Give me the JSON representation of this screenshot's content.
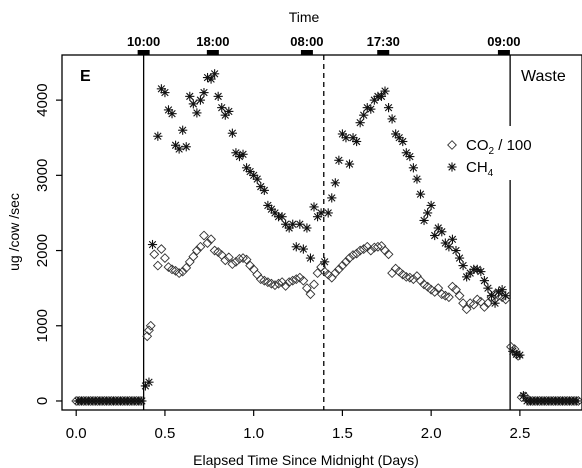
{
  "chart_data": {
    "type": "scatter",
    "title": "",
    "top_axis_title": "Time",
    "top_time_labels": [
      {
        "x": 0.38,
        "label": "10:00"
      },
      {
        "x": 0.77,
        "label": "18:00"
      },
      {
        "x": 1.3,
        "label": "08:00"
      },
      {
        "x": 1.73,
        "label": "17:30"
      },
      {
        "x": 2.41,
        "label": "09:00"
      }
    ],
    "xlabel": "Elapsed Time Since Midnight (Days)",
    "ylabel": "ug /cow /sec",
    "xlim": [
      -0.08,
      2.85
    ],
    "ylim": [
      -120,
      4600
    ],
    "xticks": [
      0.0,
      0.5,
      1.0,
      1.5,
      2.0,
      2.5
    ],
    "xtick_labels": [
      "0.0",
      "0.5",
      "1.0",
      "1.5",
      "2.0",
      "2.5"
    ],
    "yticks": [
      0,
      1000,
      2000,
      3000,
      4000
    ],
    "ytick_labels": [
      "0",
      "1000",
      "2000",
      "3000",
      "4000"
    ],
    "grid": false,
    "legend_position": "right",
    "panel_label": "E",
    "annotation": "Waste",
    "vertical_lines": [
      {
        "x": 0.38,
        "style": "solid"
      },
      {
        "x": 1.395,
        "style": "dashed"
      },
      {
        "x": 2.445,
        "style": "solid"
      }
    ],
    "series": [
      {
        "name": "CO2 / 100",
        "legend_main": "CO",
        "legend_sub": "2",
        "legend_suffix": " / 100",
        "marker": "diamond",
        "points": [
          [
            0.0,
            0
          ],
          [
            0.02,
            0
          ],
          [
            0.04,
            0
          ],
          [
            0.06,
            0
          ],
          [
            0.08,
            0
          ],
          [
            0.1,
            0
          ],
          [
            0.12,
            0
          ],
          [
            0.14,
            0
          ],
          [
            0.16,
            0
          ],
          [
            0.18,
            0
          ],
          [
            0.2,
            0
          ],
          [
            0.22,
            0
          ],
          [
            0.24,
            0
          ],
          [
            0.26,
            0
          ],
          [
            0.28,
            0
          ],
          [
            0.3,
            0
          ],
          [
            0.32,
            0
          ],
          [
            0.34,
            0
          ],
          [
            0.36,
            0
          ],
          [
            0.4,
            860
          ],
          [
            0.41,
            940
          ],
          [
            0.42,
            1000
          ],
          [
            0.44,
            1950
          ],
          [
            0.46,
            1800
          ],
          [
            0.48,
            2020
          ],
          [
            0.5,
            1900
          ],
          [
            0.52,
            1780
          ],
          [
            0.54,
            1750
          ],
          [
            0.56,
            1730
          ],
          [
            0.58,
            1700
          ],
          [
            0.6,
            1720
          ],
          [
            0.62,
            1770
          ],
          [
            0.64,
            1850
          ],
          [
            0.66,
            1920
          ],
          [
            0.68,
            2000
          ],
          [
            0.7,
            2050
          ],
          [
            0.72,
            2200
          ],
          [
            0.74,
            2100
          ],
          [
            0.76,
            2150
          ],
          [
            0.78,
            2000
          ],
          [
            0.8,
            1980
          ],
          [
            0.82,
            1940
          ],
          [
            0.84,
            1870
          ],
          [
            0.86,
            1910
          ],
          [
            0.88,
            1820
          ],
          [
            0.9,
            1850
          ],
          [
            0.92,
            1890
          ],
          [
            0.94,
            1900
          ],
          [
            0.96,
            1880
          ],
          [
            0.98,
            1800
          ],
          [
            1.0,
            1750
          ],
          [
            1.02,
            1680
          ],
          [
            1.04,
            1620
          ],
          [
            1.06,
            1600
          ],
          [
            1.08,
            1580
          ],
          [
            1.1,
            1560
          ],
          [
            1.12,
            1540
          ],
          [
            1.14,
            1560
          ],
          [
            1.16,
            1580
          ],
          [
            1.18,
            1530
          ],
          [
            1.2,
            1580
          ],
          [
            1.22,
            1600
          ],
          [
            1.24,
            1620
          ],
          [
            1.26,
            1640
          ],
          [
            1.28,
            1600
          ],
          [
            1.3,
            1500
          ],
          [
            1.32,
            1420
          ],
          [
            1.34,
            1550
          ],
          [
            1.36,
            1700
          ],
          [
            1.38,
            1780
          ],
          [
            1.4,
            1720
          ],
          [
            1.42,
            1680
          ],
          [
            1.44,
            1640
          ],
          [
            1.46,
            1700
          ],
          [
            1.48,
            1750
          ],
          [
            1.5,
            1800
          ],
          [
            1.52,
            1850
          ],
          [
            1.54,
            1900
          ],
          [
            1.56,
            1940
          ],
          [
            1.58,
            1960
          ],
          [
            1.6,
            2000
          ],
          [
            1.62,
            2020
          ],
          [
            1.64,
            2050
          ],
          [
            1.66,
            2000
          ],
          [
            1.68,
            2040
          ],
          [
            1.7,
            2050
          ],
          [
            1.72,
            2060
          ],
          [
            1.74,
            2000
          ],
          [
            1.76,
            1950
          ],
          [
            1.78,
            1700
          ],
          [
            1.8,
            1760
          ],
          [
            1.82,
            1720
          ],
          [
            1.84,
            1680
          ],
          [
            1.86,
            1650
          ],
          [
            1.88,
            1640
          ],
          [
            1.9,
            1620
          ],
          [
            1.92,
            1660
          ],
          [
            1.94,
            1600
          ],
          [
            1.96,
            1550
          ],
          [
            1.98,
            1520
          ],
          [
            2.0,
            1480
          ],
          [
            2.02,
            1450
          ],
          [
            2.04,
            1500
          ],
          [
            2.06,
            1420
          ],
          [
            2.08,
            1400
          ],
          [
            2.1,
            1380
          ],
          [
            2.12,
            1520
          ],
          [
            2.14,
            1480
          ],
          [
            2.16,
            1400
          ],
          [
            2.18,
            1300
          ],
          [
            2.2,
            1220
          ],
          [
            2.22,
            1300
          ],
          [
            2.24,
            1280
          ],
          [
            2.26,
            1350
          ],
          [
            2.28,
            1320
          ],
          [
            2.3,
            1250
          ],
          [
            2.32,
            1300
          ],
          [
            2.34,
            1380
          ],
          [
            2.36,
            1420
          ],
          [
            2.38,
            1400
          ],
          [
            2.4,
            1380
          ],
          [
            2.42,
            1350
          ],
          [
            2.45,
            720
          ],
          [
            2.47,
            690
          ],
          [
            2.49,
            600
          ],
          [
            2.51,
            50
          ],
          [
            2.53,
            60
          ],
          [
            2.55,
            0
          ],
          [
            2.57,
            0
          ],
          [
            2.59,
            0
          ],
          [
            2.61,
            0
          ],
          [
            2.63,
            0
          ],
          [
            2.65,
            0
          ],
          [
            2.67,
            0
          ],
          [
            2.69,
            0
          ],
          [
            2.71,
            0
          ],
          [
            2.73,
            0
          ],
          [
            2.75,
            0
          ],
          [
            2.77,
            0
          ],
          [
            2.79,
            0
          ],
          [
            2.81,
            0
          ],
          [
            2.83,
            0
          ]
        ]
      },
      {
        "name": "CH4",
        "legend_main": "CH",
        "legend_sub": "4",
        "legend_suffix": "",
        "marker": "asterisk",
        "points": [
          [
            0.01,
            0
          ],
          [
            0.03,
            0
          ],
          [
            0.05,
            0
          ],
          [
            0.07,
            0
          ],
          [
            0.09,
            0
          ],
          [
            0.11,
            0
          ],
          [
            0.13,
            0
          ],
          [
            0.15,
            0
          ],
          [
            0.17,
            0
          ],
          [
            0.19,
            0
          ],
          [
            0.21,
            0
          ],
          [
            0.23,
            0
          ],
          [
            0.25,
            0
          ],
          [
            0.27,
            0
          ],
          [
            0.29,
            0
          ],
          [
            0.31,
            0
          ],
          [
            0.33,
            0
          ],
          [
            0.35,
            0
          ],
          [
            0.37,
            0
          ],
          [
            0.39,
            200
          ],
          [
            0.41,
            250
          ],
          [
            0.43,
            2080
          ],
          [
            0.46,
            3520
          ],
          [
            0.48,
            4150
          ],
          [
            0.5,
            4100
          ],
          [
            0.52,
            3870
          ],
          [
            0.54,
            3820
          ],
          [
            0.56,
            3400
          ],
          [
            0.58,
            3350
          ],
          [
            0.6,
            3600
          ],
          [
            0.62,
            3380
          ],
          [
            0.64,
            4050
          ],
          [
            0.66,
            3950
          ],
          [
            0.68,
            3830
          ],
          [
            0.7,
            4000
          ],
          [
            0.72,
            4100
          ],
          [
            0.74,
            4300
          ],
          [
            0.76,
            4280
          ],
          [
            0.78,
            4350
          ],
          [
            0.8,
            4050
          ],
          [
            0.82,
            3900
          ],
          [
            0.84,
            3800
          ],
          [
            0.86,
            3850
          ],
          [
            0.88,
            3560
          ],
          [
            0.9,
            3300
          ],
          [
            0.92,
            3250
          ],
          [
            0.94,
            3280
          ],
          [
            0.96,
            3100
          ],
          [
            0.98,
            3050
          ],
          [
            1.0,
            3000
          ],
          [
            1.02,
            2950
          ],
          [
            1.04,
            2850
          ],
          [
            1.06,
            2800
          ],
          [
            1.08,
            2600
          ],
          [
            1.1,
            2550
          ],
          [
            1.12,
            2500
          ],
          [
            1.14,
            2450
          ],
          [
            1.16,
            2450
          ],
          [
            1.18,
            2350
          ],
          [
            1.2,
            2300
          ],
          [
            1.22,
            2350
          ],
          [
            1.24,
            2050
          ],
          [
            1.26,
            2350
          ],
          [
            1.28,
            2020
          ],
          [
            1.3,
            2300
          ],
          [
            1.32,
            1900
          ],
          [
            1.34,
            2580
          ],
          [
            1.36,
            2450
          ],
          [
            1.38,
            2500
          ],
          [
            1.4,
            1850
          ],
          [
            1.42,
            2500
          ],
          [
            1.44,
            2700
          ],
          [
            1.46,
            2900
          ],
          [
            1.48,
            3200
          ],
          [
            1.5,
            3550
          ],
          [
            1.52,
            3500
          ],
          [
            1.54,
            3150
          ],
          [
            1.56,
            3500
          ],
          [
            1.58,
            3450
          ],
          [
            1.6,
            3700
          ],
          [
            1.62,
            3800
          ],
          [
            1.64,
            3900
          ],
          [
            1.66,
            3880
          ],
          [
            1.68,
            4000
          ],
          [
            1.7,
            4050
          ],
          [
            1.72,
            4050
          ],
          [
            1.74,
            4120
          ],
          [
            1.76,
            3900
          ],
          [
            1.78,
            3750
          ],
          [
            1.8,
            3550
          ],
          [
            1.82,
            3500
          ],
          [
            1.84,
            3450
          ],
          [
            1.86,
            3300
          ],
          [
            1.88,
            3250
          ],
          [
            1.9,
            3100
          ],
          [
            1.92,
            2950
          ],
          [
            1.94,
            2750
          ],
          [
            1.96,
            2400
          ],
          [
            1.98,
            2500
          ],
          [
            2.0,
            2600
          ],
          [
            2.02,
            2200
          ],
          [
            2.04,
            2300
          ],
          [
            2.06,
            2250
          ],
          [
            2.08,
            2100
          ],
          [
            2.1,
            2050
          ],
          [
            2.12,
            2150
          ],
          [
            2.14,
            2000
          ],
          [
            2.16,
            1900
          ],
          [
            2.18,
            1800
          ],
          [
            2.2,
            1650
          ],
          [
            2.22,
            1700
          ],
          [
            2.24,
            1750
          ],
          [
            2.26,
            1750
          ],
          [
            2.28,
            1720
          ],
          [
            2.3,
            1600
          ],
          [
            2.32,
            1500
          ],
          [
            2.34,
            1400
          ],
          [
            2.36,
            1300
          ],
          [
            2.38,
            1450
          ],
          [
            2.4,
            1480
          ],
          [
            2.42,
            1400
          ],
          [
            2.46,
            660
          ],
          [
            2.48,
            620
          ],
          [
            2.5,
            610
          ],
          [
            2.52,
            70
          ],
          [
            2.54,
            0
          ],
          [
            2.56,
            0
          ],
          [
            2.58,
            0
          ],
          [
            2.6,
            0
          ],
          [
            2.62,
            0
          ],
          [
            2.64,
            0
          ],
          [
            2.66,
            0
          ],
          [
            2.68,
            0
          ],
          [
            2.7,
            0
          ],
          [
            2.72,
            0
          ],
          [
            2.74,
            0
          ],
          [
            2.76,
            0
          ],
          [
            2.78,
            0
          ],
          [
            2.8,
            0
          ],
          [
            2.82,
            0
          ]
        ]
      }
    ]
  }
}
